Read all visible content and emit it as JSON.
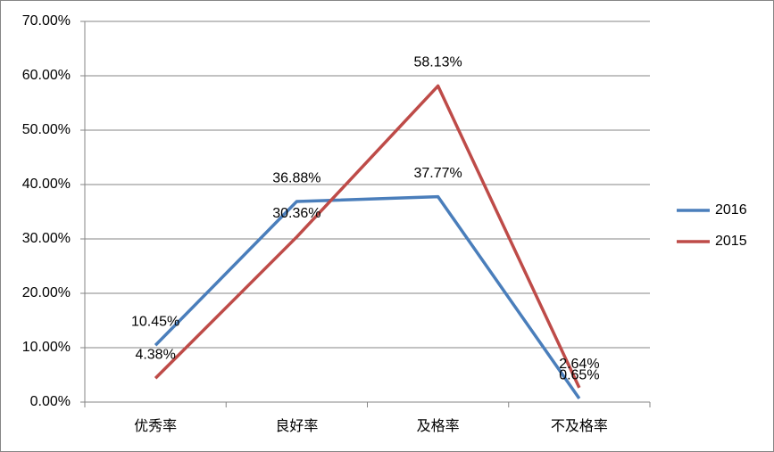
{
  "chart_data": {
    "type": "line",
    "categories": [
      "优秀率",
      "良好率",
      "及格率",
      "不及格率"
    ],
    "series": [
      {
        "name": "2016",
        "color": "#4a7ebb",
        "values": [
          10.45,
          36.88,
          37.77,
          0.65
        ],
        "value_labels": [
          "10.45%",
          "36.88%",
          "37.77%",
          "0.65%"
        ]
      },
      {
        "name": "2015",
        "color": "#be4b48",
        "values": [
          4.38,
          30.36,
          58.13,
          2.64
        ],
        "value_labels": [
          "4.38%",
          "30.36%",
          "58.13%",
          "2.64%"
        ]
      }
    ],
    "ylim": [
      0,
      70
    ],
    "yticks": [
      {
        "value": 0,
        "label": "0.00%"
      },
      {
        "value": 10,
        "label": "10.00%"
      },
      {
        "value": 20,
        "label": "20.00%"
      },
      {
        "value": 30,
        "label": "30.00%"
      },
      {
        "value": 40,
        "label": "40.00%"
      },
      {
        "value": 50,
        "label": "50.00%"
      },
      {
        "value": 60,
        "label": "60.00%"
      },
      {
        "value": 70,
        "label": "70.00%"
      }
    ],
    "grid": true,
    "legend": "right"
  }
}
